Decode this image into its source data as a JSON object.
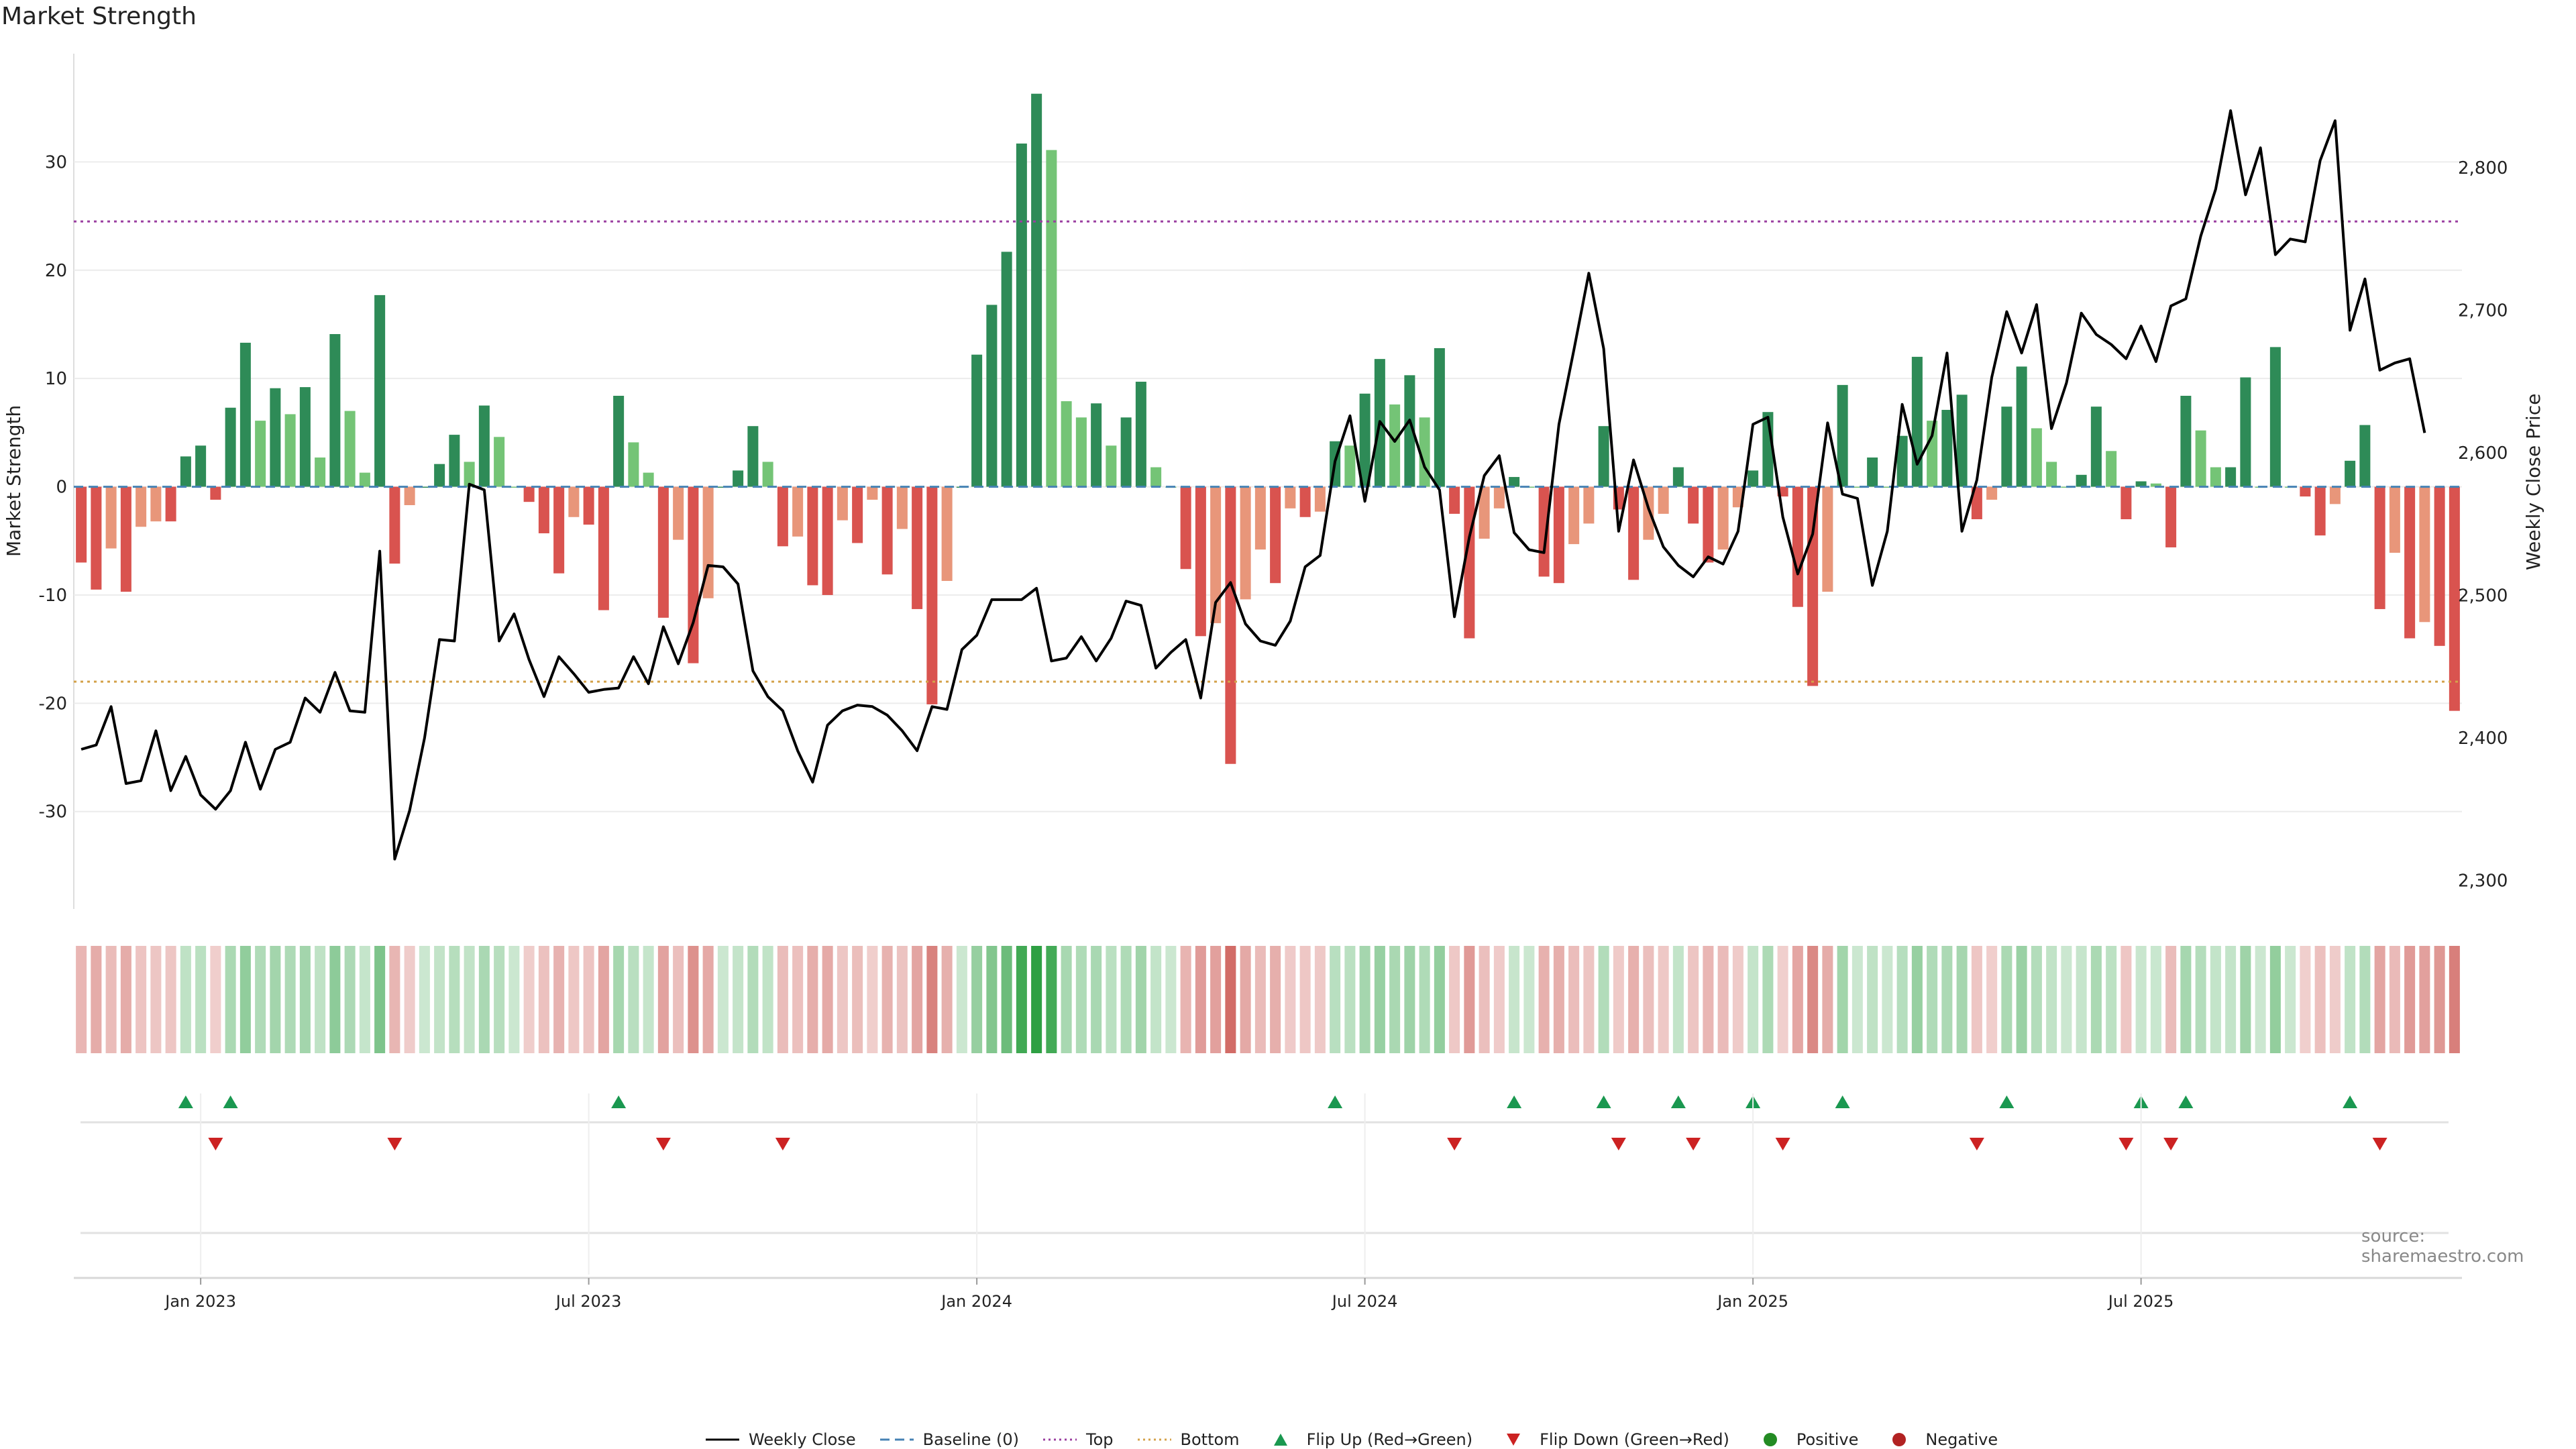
{
  "title": "Market Strength",
  "source_text": "source: sharemaestro.com",
  "colors": {
    "strong_pos": "#2e8b57",
    "weak_pos": "#74c476",
    "strong_neg": "#d9534f",
    "weak_neg": "#e8967a",
    "price": "#000000",
    "top": "#9b3fa0",
    "bottom": "#d4a24a",
    "baseline": "#4682b4",
    "flip_up": "#1a9850",
    "flip_down": "#cc2222"
  },
  "legend": [
    {
      "label": "Weekly Close",
      "kind": "line"
    },
    {
      "label": "Baseline (0)",
      "kind": "dash"
    },
    {
      "label": "Top",
      "kind": "dot-top"
    },
    {
      "label": "Bottom",
      "kind": "dot-bottom"
    },
    {
      "label": "Flip Up (Red→Green)",
      "kind": "tri-up"
    },
    {
      "label": "Flip Down (Green→Red)",
      "kind": "tri-down"
    },
    {
      "label": "Positive",
      "kind": "dot-pos"
    },
    {
      "label": "Negative",
      "kind": "dot-neg"
    }
  ],
  "chart_data": {
    "type": "bar",
    "title": "Market Strength",
    "ylabel": "Market Strength",
    "y2label": "Weekly Close Price",
    "ylim": [
      -39,
      40
    ],
    "y2lim": [
      2280,
      2880
    ],
    "y_ticks": [
      30,
      20,
      10,
      0,
      -10,
      -20,
      -30
    ],
    "y2_ticks": [
      2800,
      2700,
      2600,
      2500,
      2400,
      2300
    ],
    "y2_tick_labels": [
      "2,800",
      "2,700",
      "2,600",
      "2,500",
      "2,400",
      "2,300"
    ],
    "x_ticks": [
      {
        "label": "Jan 2023",
        "index": 8
      },
      {
        "label": "Jul 2023",
        "index": 34
      },
      {
        "label": "Jan 2024",
        "index": 60
      },
      {
        "label": "Jul 2024",
        "index": 86
      },
      {
        "label": "Jan 2025",
        "index": 112
      },
      {
        "label": "Jul 2025",
        "index": 138
      }
    ],
    "top_level": 24.5,
    "bottom_level": -18,
    "strength": [
      -7,
      -9.5,
      -5.7,
      -9.7,
      -3.7,
      -3.2,
      -3.2,
      2.8,
      3.8,
      -1.2,
      7.3,
      13.3,
      6.1,
      9.1,
      6.7,
      9.2,
      2.7,
      14.1,
      7.0,
      1.3,
      17.7,
      -7.1,
      -1.7,
      0,
      2.1,
      4.8,
      2.3,
      7.5,
      4.6,
      0,
      -1.4,
      -4.3,
      -8.0,
      -2.8,
      -3.5,
      -11.4,
      8.4,
      4.1,
      1.3,
      -12.1,
      -4.9,
      -16.3,
      -10.3,
      0,
      1.5,
      5.6,
      2.3,
      -5.5,
      -4.6,
      -9.1,
      -10.0,
      -3.1,
      -5.2,
      -1.2,
      -8.1,
      -3.9,
      -11.3,
      -20.1,
      -8.7,
      0,
      12.2,
      16.8,
      21.7,
      31.7,
      36.3,
      31.1,
      7.9,
      6.4,
      7.7,
      3.8,
      6.4,
      9.7,
      1.8,
      0,
      -7.6,
      -13.8,
      -12.6,
      -25.6,
      -10.4,
      -5.8,
      -8.9,
      -2.0,
      -2.8,
      -2.3,
      4.2,
      3.8,
      8.6,
      11.8,
      7.6,
      10.3,
      6.4,
      12.8,
      -2.5,
      -14.0,
      -4.8,
      -2.0,
      0.9,
      0,
      -8.3,
      -8.9,
      -5.3,
      -3.4,
      5.6,
      -2.1,
      -8.6,
      -4.9,
      -2.5,
      1.8,
      -3.4,
      -7.0,
      -5.8,
      -1.9,
      1.5,
      6.9,
      -0.9,
      -11.1,
      -18.4,
      -9.7,
      9.4,
      0,
      2.7,
      0,
      4.7,
      12.0,
      6.1,
      7.1,
      8.5,
      -3.0,
      -1.2,
      7.4,
      11.1,
      5.4,
      2.3,
      0,
      1.1,
      7.4,
      3.3,
      -3.0,
      0.5,
      0.3,
      -5.6,
      8.4,
      5.2,
      1.8,
      1.8,
      10.1,
      0,
      12.9,
      0,
      -0.9,
      -4.5,
      -1.6,
      2.4,
      5.7,
      -11.3,
      -6.1,
      -14.0,
      -12.5,
      -14.7,
      -20.7
    ],
    "weekly_close": [
      2392,
      2395,
      2422,
      2368,
      2370,
      2405,
      2363,
      2387,
      2360,
      2350,
      2363,
      2397,
      2364,
      2392,
      2397,
      2428,
      2418,
      2446,
      2419,
      2418,
      2531,
      2315,
      2349,
      2400,
      2469,
      2468,
      2578,
      2574,
      2468,
      2487,
      2455,
      2429,
      2457,
      2445,
      2432,
      2434,
      2435,
      2457,
      2438,
      2478,
      2452,
      2481,
      2521,
      2520,
      2508,
      2447,
      2429,
      2419,
      2391,
      2369,
      2409,
      2419,
      2423,
      2422,
      2416,
      2405,
      2391,
      2422,
      2420,
      2462,
      2472,
      2497,
      2497,
      2497,
      2505,
      2454,
      2456,
      2471,
      2454,
      2470,
      2496,
      2493,
      2449,
      2460,
      2469,
      2428,
      2495,
      2509,
      2480,
      2468,
      2465,
      2482,
      2520,
      2528,
      2594,
      2626,
      2566,
      2622,
      2608,
      2623,
      2590,
      2574,
      2485,
      2541,
      2584,
      2598,
      2544,
      2532,
      2530,
      2620,
      2672,
      2726,
      2673,
      2545,
      2595,
      2561,
      2534,
      2521,
      2513,
      2527,
      2522,
      2545,
      2620,
      2625,
      2555,
      2515,
      2543,
      2621,
      2571,
      2568,
      2507,
      2545,
      2634,
      2592,
      2612,
      2670,
      2545,
      2581,
      2653,
      2699,
      2670,
      2704,
      2617,
      2649,
      2698,
      2683,
      2676,
      2666,
      2689,
      2664,
      2703,
      2708,
      2752,
      2785,
      2840,
      2781,
      2814,
      2739,
      2750,
      2748,
      2805,
      2833,
      2686,
      2722,
      2658,
      2663,
      2666,
      2614
    ]
  }
}
